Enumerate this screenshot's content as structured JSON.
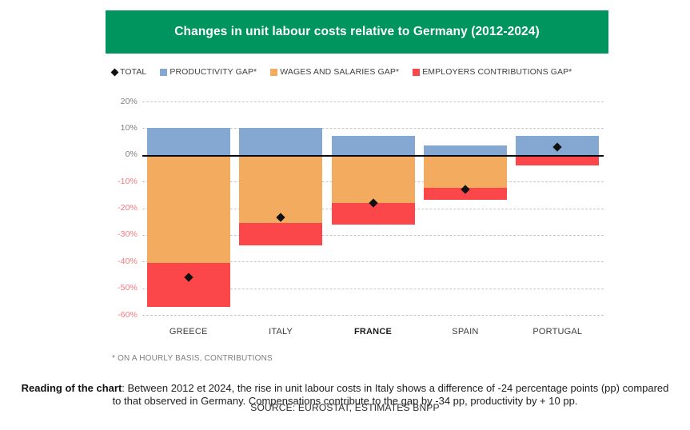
{
  "header": {
    "title": "Changes in unit labour costs relative to Germany (2012-2024)",
    "background_color": "#00945E",
    "text_color": "#ffffff"
  },
  "legend": {
    "items": [
      {
        "label": "TOTAL",
        "marker": "diamond-icon",
        "color": "#111111"
      },
      {
        "label": "PRODUCTIVITY GAP*",
        "marker": "square-icon",
        "color": "#85A8D3"
      },
      {
        "label": "WAGES AND SALARIES GAP*",
        "marker": "square-icon",
        "color": "#F2AB5F"
      },
      {
        "label": "EMPLOYERS CONTRIBUTIONS GAP*",
        "marker": "square-icon",
        "color": "#FB4749"
      }
    ]
  },
  "chart_data": {
    "type": "bar",
    "stacked": true,
    "title": "Changes in unit labour costs relative to Germany (2012-2024)",
    "categories": [
      "GREECE",
      "ITALY",
      "FRANCE",
      "SPAIN",
      "PORTUGAL"
    ],
    "emphasized_category": "FRANCE",
    "series": [
      {
        "name": "PRODUCTIVITY GAP*",
        "color": "#85A8D3",
        "values": [
          10,
          10,
          7,
          3.5,
          7
        ]
      },
      {
        "name": "WAGES AND SALARIES GAP*",
        "color": "#F2AB5F",
        "values": [
          -40.5,
          -25.5,
          -18,
          -12.5,
          0
        ]
      },
      {
        "name": "EMPLOYERS CONTRIBUTIONS GAP*",
        "color": "#FB4749",
        "values": [
          -16.5,
          -8.5,
          -8,
          -4.5,
          -4
        ]
      }
    ],
    "totals": {
      "name": "TOTAL",
      "marker": "diamond",
      "color": "#111111",
      "values": [
        -46,
        -23.5,
        -18,
        -13,
        3
      ]
    },
    "ylim": [
      -60,
      20
    ],
    "yticks": [
      20,
      10,
      0,
      -10,
      -20,
      -30,
      -40,
      -50,
      -60
    ],
    "ytick_suffix": "%",
    "positive_tick_color": "#7F7F7F",
    "negative_tick_color": "#F8797D",
    "grid": "dashed-horizontal",
    "zero_line": true,
    "legend_position": "top"
  },
  "footnote": "* ON A HOURLY BASIS, CONTRIBUTIONS",
  "reading": {
    "bold_label": "Reading of the chart",
    "text": ": Between 2012 et 2024, the rise in unit labour costs in Italy shows a difference of -24 percentage points (pp) compared to that observed in Germany. Compensations contribute to the gap by -34 pp, productivity by + 10 pp."
  },
  "source": "SOURCE: EUROSTAT, ESTIMATES BNPP"
}
